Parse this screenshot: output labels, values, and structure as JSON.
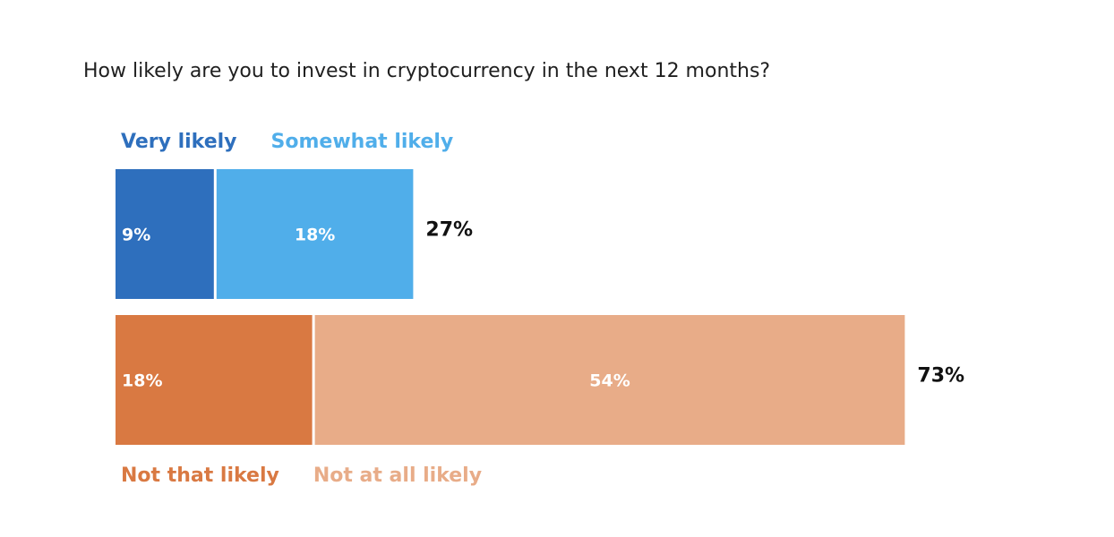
{
  "chart_data": {
    "type": "bar",
    "orientation": "horizontal",
    "stacked": true,
    "title": "How likely are you to invest in cryptocurrency in the next 12 months?",
    "xlim": [
      0,
      73
    ],
    "grid": false,
    "bars": [
      {
        "total": 27,
        "total_label": "27%",
        "legend_position": "top",
        "segments": [
          {
            "name": "Very likely",
            "value": 9,
            "label": "9%",
            "color": "#2e6fbd",
            "label_align": "left"
          },
          {
            "name": "Somewhat likely",
            "value": 18,
            "label": "18%",
            "color": "#50aeea",
            "label_align": "center"
          }
        ]
      },
      {
        "total": 73,
        "total_label": "73%",
        "legend_position": "bottom",
        "segments": [
          {
            "name": "Not that likely",
            "value": 18,
            "label": "18%",
            "color": "#d97942",
            "label_align": "left"
          },
          {
            "name": "Not at all likely",
            "value": 54,
            "label": "54%",
            "color": "#e8ac88",
            "label_align": "center"
          }
        ]
      }
    ]
  }
}
